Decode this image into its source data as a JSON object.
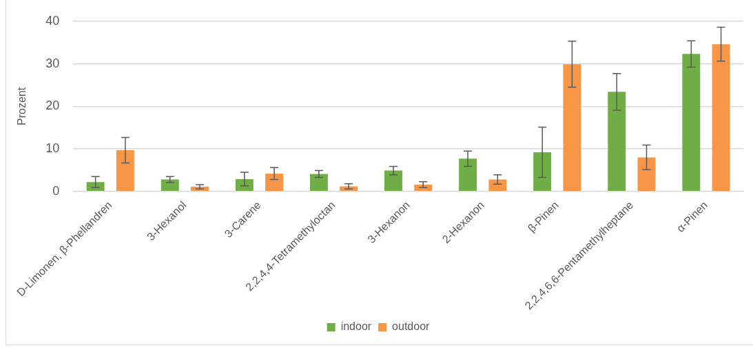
{
  "chart_data": {
    "type": "bar",
    "ylabel": "Prozent",
    "categories": [
      "D-Limonen, β-Phellandren",
      "3-Hexanol",
      "3-Carene",
      "2,2,4,4-Tetramethyloctan",
      "3-Hexanon",
      "2-Hexanon",
      "β-Pinen",
      "2,2,4,6,6-Pentamethylheptane",
      "α-Pinen"
    ],
    "series": [
      {
        "name": "indoor",
        "color": "#70ad47",
        "values": [
          2.2,
          2.8,
          2.9,
          4.1,
          4.9,
          7.7,
          9.2,
          23.4,
          32.3
        ],
        "errors": [
          1.3,
          0.7,
          1.6,
          0.8,
          1.0,
          1.8,
          5.9,
          4.3,
          3.1
        ]
      },
      {
        "name": "outdoor",
        "color": "#f79646",
        "values": [
          9.7,
          1.1,
          4.2,
          1.2,
          1.6,
          2.8,
          29.9,
          8.0,
          34.6
        ],
        "errors": [
          3.0,
          0.5,
          1.4,
          0.6,
          0.7,
          1.1,
          5.4,
          2.9,
          4.0
        ]
      }
    ],
    "ylim": [
      0,
      40
    ],
    "yticks": [
      0,
      10,
      20,
      30,
      40
    ],
    "grid": "y",
    "legend": "bottom"
  }
}
